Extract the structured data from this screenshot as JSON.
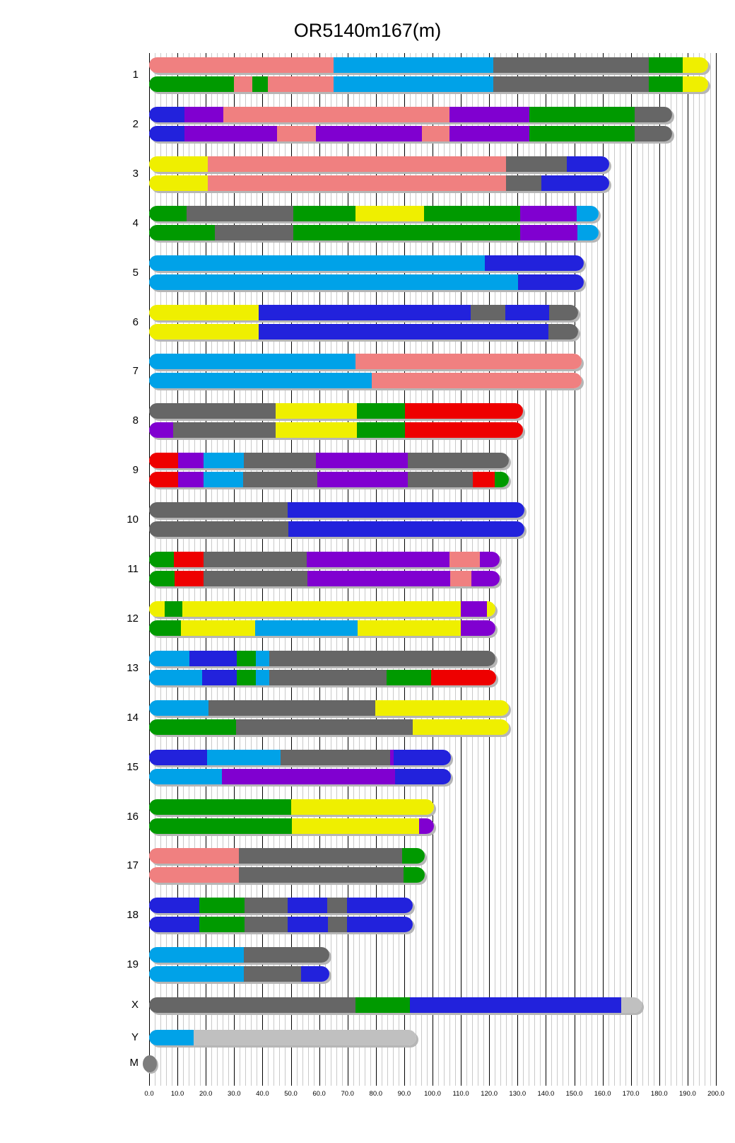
{
  "chart_data": {
    "type": "chromosome-ideogram",
    "title": "OR5140m167(m)",
    "x_axis": {
      "min": 0,
      "max": 200,
      "major_step": 10,
      "minor_step": 2,
      "tick_labels": [
        "0.0",
        "10.0",
        "20.0",
        "30.0",
        "40.0",
        "50.0",
        "60.0",
        "70.0",
        "80.0",
        "90.0",
        "100.0",
        "110.0",
        "120.0",
        "130.0",
        "140.0",
        "150.0",
        "160.0",
        "170.0",
        "180.0",
        "190.0",
        "200.0"
      ]
    },
    "palette": {
      "salmon": "#f08080",
      "cyan": "#00a2e8",
      "gray": "#666666",
      "green": "#009a00",
      "yellow": "#efef00",
      "blue": "#2222dc",
      "purple": "#8000d0",
      "red": "#ee0000",
      "silver": "#c0c0c0",
      "mgray": "#7d7d7d"
    },
    "chromosomes": [
      {
        "label": "1",
        "bars": [
          [
            [
              "salmon",
              0,
              65
            ],
            [
              "cyan",
              65,
              121.4
            ],
            [
              "gray",
              121.4,
              176.4
            ],
            [
              "green",
              176.4,
              188.4
            ],
            [
              "yellow",
              188.4,
              197.2
            ]
          ],
          [
            [
              "green",
              0,
              30
            ],
            [
              "salmon",
              30,
              36.5
            ],
            [
              "green",
              36.5,
              42
            ],
            [
              "salmon",
              42,
              65.2
            ],
            [
              "cyan",
              65.2,
              121.4
            ],
            [
              "gray",
              121.4,
              176.4
            ],
            [
              "green",
              176.4,
              188.4
            ],
            [
              "yellow",
              188.4,
              197.2
            ]
          ]
        ]
      },
      {
        "label": "2",
        "bars": [
          [
            [
              "blue",
              0,
              12.4
            ],
            [
              "purple",
              12.4,
              26.2
            ],
            [
              "salmon",
              26.2,
              106
            ],
            [
              "purple",
              106,
              134.2
            ],
            [
              "green",
              134.2,
              171.3
            ],
            [
              "gray",
              171.3,
              184.6
            ]
          ],
          [
            [
              "blue",
              0,
              12.4
            ],
            [
              "purple",
              12.4,
              45.1
            ],
            [
              "salmon",
              45.1,
              58.9
            ],
            [
              "purple",
              58.9,
              96.2
            ],
            [
              "salmon",
              96.2,
              106
            ],
            [
              "purple",
              106,
              134.2
            ],
            [
              "green",
              134.2,
              171.3
            ],
            [
              "gray",
              171.3,
              184.6
            ]
          ]
        ]
      },
      {
        "label": "3",
        "bars": [
          [
            [
              "yellow",
              0,
              20.8
            ],
            [
              "salmon",
              20.8,
              125.9
            ],
            [
              "gray",
              125.9,
              147.4
            ],
            [
              "blue",
              147.4,
              162.3
            ]
          ],
          [
            [
              "yellow",
              0,
              20.8
            ],
            [
              "salmon",
              20.8,
              125.9
            ],
            [
              "gray",
              125.9,
              138.3
            ],
            [
              "blue",
              138.3,
              162.3
            ]
          ]
        ]
      },
      {
        "label": "4",
        "bars": [
          [
            [
              "green",
              0,
              13.1
            ],
            [
              "gray",
              13.1,
              50.8
            ],
            [
              "green",
              50.8,
              72.8
            ],
            [
              "yellow",
              72.8,
              96.9
            ],
            [
              "green",
              96.9,
              130.8
            ],
            [
              "purple",
              130.8,
              150.8
            ],
            [
              "cyan",
              150.8,
              158.6
            ]
          ],
          [
            [
              "green",
              0,
              23.3
            ],
            [
              "gray",
              23.3,
              50.8
            ],
            [
              "green",
              50.8,
              131
            ],
            [
              "purple",
              131,
              151
            ],
            [
              "cyan",
              151,
              158.6
            ]
          ]
        ]
      },
      {
        "label": "5",
        "bars": [
          [
            [
              "cyan",
              0,
              118.5
            ],
            [
              "blue",
              118.5,
              153.4
            ]
          ],
          [
            [
              "cyan",
              0,
              130.2
            ],
            [
              "blue",
              130.2,
              153.4
            ]
          ]
        ]
      },
      {
        "label": "6",
        "bars": [
          [
            [
              "yellow",
              0,
              38.6
            ],
            [
              "blue",
              38.6,
              113.5
            ],
            [
              "gray",
              113.5,
              125.8
            ],
            [
              "blue",
              125.8,
              141.2
            ],
            [
              "gray",
              141.2,
              151.3
            ]
          ],
          [
            [
              "yellow",
              0,
              38.6
            ],
            [
              "blue",
              38.6,
              140.8
            ],
            [
              "gray",
              140.8,
              151.3
            ]
          ]
        ]
      },
      {
        "label": "7",
        "bars": [
          [
            [
              "cyan",
              0,
              72.9
            ],
            [
              "salmon",
              72.9,
              152.7
            ]
          ],
          [
            [
              "cyan",
              0,
              78.5
            ],
            [
              "salmon",
              78.5,
              152.7
            ]
          ]
        ]
      },
      {
        "label": "8",
        "bars": [
          [
            [
              "gray",
              0,
              44.6
            ],
            [
              "yellow",
              44.6,
              73.3
            ],
            [
              "green",
              73.3,
              90.2
            ],
            [
              "red",
              90.2,
              131.8
            ]
          ],
          [
            [
              "purple",
              0,
              8.6
            ],
            [
              "gray",
              8.6,
              44.6
            ],
            [
              "yellow",
              44.6,
              73.3
            ],
            [
              "green",
              73.3,
              90.2
            ],
            [
              "red",
              90.2,
              131.8
            ]
          ]
        ]
      },
      {
        "label": "9",
        "bars": [
          [
            [
              "red",
              0,
              10.2
            ],
            [
              "purple",
              10.2,
              19.2
            ],
            [
              "cyan",
              19.2,
              33.5
            ],
            [
              "gray",
              33.5,
              58.9
            ],
            [
              "purple",
              58.9,
              91.3
            ],
            [
              "gray",
              91.3,
              127
            ]
          ],
          [
            [
              "red",
              0,
              10.2
            ],
            [
              "purple",
              10.2,
              19.2
            ],
            [
              "cyan",
              19.2,
              33.1
            ],
            [
              "gray",
              33.1,
              59.3
            ],
            [
              "purple",
              59.3,
              91.3
            ],
            [
              "gray",
              91.3,
              114.1
            ],
            [
              "red",
              114.1,
              122
            ],
            [
              "green",
              122,
              127
            ]
          ]
        ]
      },
      {
        "label": "10",
        "bars": [
          [
            [
              "gray",
              0,
              48.9
            ],
            [
              "blue",
              48.9,
              132.4
            ]
          ],
          [
            [
              "gray",
              0,
              49.2
            ],
            [
              "blue",
              49.2,
              132.4
            ]
          ]
        ]
      },
      {
        "label": "11",
        "bars": [
          [
            [
              "green",
              0,
              8.7
            ],
            [
              "red",
              8.7,
              19.2
            ],
            [
              "gray",
              19.2,
              55.6
            ],
            [
              "purple",
              55.6,
              106
            ],
            [
              "salmon",
              106,
              116.6
            ],
            [
              "purple",
              116.6,
              123.8
            ]
          ],
          [
            [
              "green",
              0,
              8.9
            ],
            [
              "red",
              8.9,
              19.2
            ],
            [
              "gray",
              19.2,
              55.8
            ],
            [
              "purple",
              55.8,
              106.3
            ],
            [
              "salmon",
              106.3,
              113.7
            ],
            [
              "purple",
              113.7,
              123.8
            ]
          ]
        ]
      },
      {
        "label": "12",
        "bars": [
          [
            [
              "yellow",
              0,
              5.6
            ],
            [
              "green",
              5.6,
              11.6
            ],
            [
              "yellow",
              11.6,
              109.9
            ],
            [
              "purple",
              109.9,
              119.3
            ],
            [
              "yellow",
              119.3,
              122.3
            ]
          ],
          [
            [
              "green",
              0,
              11.3
            ],
            [
              "yellow",
              11.3,
              37.3
            ],
            [
              "cyan",
              37.3,
              73.5
            ],
            [
              "yellow",
              73.5,
              109.9
            ],
            [
              "purple",
              109.9,
              122.3
            ]
          ]
        ]
      },
      {
        "label": "13",
        "bars": [
          [
            [
              "cyan",
              0,
              14.2
            ],
            [
              "blue",
              14.2,
              31
            ],
            [
              "green",
              31,
              37.7
            ],
            [
              "cyan",
              37.7,
              42.3
            ],
            [
              "gray",
              42.3,
              122.3
            ]
          ],
          [
            [
              "cyan",
              0,
              18.8
            ],
            [
              "blue",
              18.8,
              31
            ],
            [
              "green",
              31,
              37.7
            ],
            [
              "cyan",
              37.7,
              42.5
            ],
            [
              "gray",
              42.5,
              83.9
            ],
            [
              "green",
              83.9,
              99.5
            ],
            [
              "red",
              99.5,
              122.5
            ]
          ]
        ]
      },
      {
        "label": "14",
        "bars": [
          [
            [
              "cyan",
              0,
              21
            ],
            [
              "gray",
              21,
              79.8
            ],
            [
              "yellow",
              79.8,
              127
            ]
          ],
          [
            [
              "green",
              0,
              30.6
            ],
            [
              "gray",
              30.6,
              93.1
            ],
            [
              "yellow",
              93.1,
              127
            ]
          ]
        ]
      },
      {
        "label": "15",
        "bars": [
          [
            [
              "blue",
              0,
              20.4
            ],
            [
              "cyan",
              20.4,
              46.4
            ],
            [
              "gray",
              46.4,
              85
            ],
            [
              "purple",
              85,
              86.4
            ],
            [
              "blue",
              86.4,
              106.4
            ]
          ],
          [
            [
              "cyan",
              0,
              25.6
            ],
            [
              "purple",
              25.6,
              86.8
            ],
            [
              "blue",
              86.8,
              106.4
            ]
          ]
        ]
      },
      {
        "label": "16",
        "bars": [
          [
            [
              "green",
              0,
              50.2
            ],
            [
              "yellow",
              50.2,
              100.4
            ]
          ],
          [
            [
              "green",
              0,
              50.3
            ],
            [
              "yellow",
              50.3,
              95.3
            ],
            [
              "purple",
              95.3,
              100.4
            ]
          ]
        ]
      },
      {
        "label": "17",
        "bars": [
          [
            [
              "salmon",
              0,
              31.7
            ],
            [
              "gray",
              31.7,
              89.3
            ],
            [
              "green",
              89.3,
              97.3
            ]
          ],
          [
            [
              "salmon",
              0,
              31.7
            ],
            [
              "gray",
              31.7,
              89.8
            ],
            [
              "green",
              89.8,
              97.3
            ]
          ]
        ]
      },
      {
        "label": "18",
        "bars": [
          [
            [
              "blue",
              0,
              17.7
            ],
            [
              "green",
              17.7,
              33.7
            ],
            [
              "gray",
              33.7,
              48.8
            ],
            [
              "blue",
              48.8,
              62.9
            ],
            [
              "gray",
              62.9,
              69.8
            ],
            [
              "blue",
              69.8,
              93.1
            ]
          ],
          [
            [
              "blue",
              0,
              17.7
            ],
            [
              "green",
              17.7,
              33.7
            ],
            [
              "gray",
              33.7,
              48.8
            ],
            [
              "blue",
              48.8,
              63.1
            ],
            [
              "gray",
              63.1,
              69.8
            ],
            [
              "blue",
              69.8,
              93.1
            ]
          ]
        ]
      },
      {
        "label": "19",
        "bars": [
          [
            [
              "cyan",
              0,
              33.5
            ],
            [
              "gray",
              33.5,
              63.5
            ]
          ],
          [
            [
              "cyan",
              0,
              33.3
            ],
            [
              "gray",
              33.3,
              53.7
            ],
            [
              "blue",
              53.7,
              63.5
            ]
          ]
        ]
      },
      {
        "label": "X",
        "bars": [
          [
            [
              "gray",
              0,
              72.7
            ],
            [
              "green",
              72.7,
              92
            ],
            [
              "blue",
              92,
              166.6
            ],
            [
              "silver",
              166.6,
              173.7
            ]
          ]
        ]
      },
      {
        "label": "Y",
        "bars": [
          [
            [
              "cyan",
              0,
              15.6
            ],
            [
              "silver",
              15.6,
              94.3
            ]
          ]
        ]
      },
      {
        "label": "M",
        "bars": [],
        "marker": "circle",
        "marker_color": "mgray"
      }
    ]
  }
}
